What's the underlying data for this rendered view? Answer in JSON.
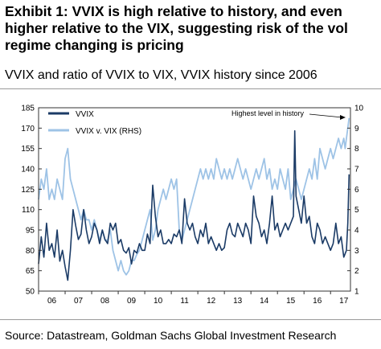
{
  "title": "Exhibit 1: VVIX is high relative to history, and even higher relative to the VIX, suggesting risk of the vol regime changing is pricing",
  "subtitle": "VVIX and ratio of VVIX to VIX, VVIX history since 2006",
  "source": "Source: Datastream, Goldman Sachs Global Investment Research",
  "colors": {
    "vvix": "#1b3b66",
    "ratio": "#9ec3e6",
    "axis": "#333333"
  },
  "chart_data": {
    "type": "line",
    "xlim": [
      2006,
      2017.75
    ],
    "x_tick_labels": [
      "06",
      "07",
      "08",
      "09",
      "10",
      "11",
      "12",
      "13",
      "14",
      "15",
      "16",
      "17"
    ],
    "y_left": {
      "lim": [
        50,
        185
      ],
      "ticks": [
        50,
        65,
        80,
        95,
        110,
        125,
        140,
        155,
        170,
        185
      ]
    },
    "y_right": {
      "lim": [
        1,
        10
      ],
      "ticks": [
        1,
        2,
        3,
        4,
        5,
        6,
        7,
        8,
        9,
        10
      ]
    },
    "annotation": "Highest level in history",
    "legend": {
      "placement": "top-left",
      "entries": [
        "VVIX",
        "VVIX v. VIX (RHS)"
      ]
    },
    "series": [
      {
        "name": "VVIX",
        "axis": "left",
        "x": [
          2006.0,
          2006.1,
          2006.2,
          2006.3,
          2006.4,
          2006.5,
          2006.6,
          2006.7,
          2006.8,
          2006.9,
          2007.0,
          2007.1,
          2007.2,
          2007.3,
          2007.4,
          2007.5,
          2007.6,
          2007.7,
          2007.8,
          2007.9,
          2008.0,
          2008.1,
          2008.2,
          2008.3,
          2008.4,
          2008.5,
          2008.6,
          2008.7,
          2008.8,
          2008.9,
          2009.0,
          2009.1,
          2009.2,
          2009.3,
          2009.4,
          2009.5,
          2009.6,
          2009.7,
          2009.8,
          2009.9,
          2010.0,
          2010.1,
          2010.2,
          2010.3,
          2010.4,
          2010.5,
          2010.6,
          2010.7,
          2010.8,
          2010.9,
          2011.0,
          2011.1,
          2011.2,
          2011.3,
          2011.4,
          2011.5,
          2011.6,
          2011.7,
          2011.8,
          2011.9,
          2012.0,
          2012.1,
          2012.2,
          2012.3,
          2012.4,
          2012.5,
          2012.6,
          2012.7,
          2012.8,
          2012.9,
          2013.0,
          2013.1,
          2013.2,
          2013.3,
          2013.4,
          2013.5,
          2013.6,
          2013.7,
          2013.8,
          2013.9,
          2014.0,
          2014.1,
          2014.2,
          2014.3,
          2014.4,
          2014.5,
          2014.6,
          2014.7,
          2014.8,
          2014.9,
          2015.0,
          2015.1,
          2015.2,
          2015.3,
          2015.4,
          2015.5,
          2015.6,
          2015.65,
          2015.7,
          2015.8,
          2015.9,
          2016.0,
          2016.1,
          2016.2,
          2016.3,
          2016.4,
          2016.5,
          2016.6,
          2016.7,
          2016.8,
          2016.9,
          2017.0,
          2017.1,
          2017.2,
          2017.3,
          2017.4,
          2017.5,
          2017.6,
          2017.65,
          2017.7
        ],
        "values": [
          70,
          90,
          75,
          100,
          80,
          85,
          75,
          95,
          72,
          80,
          68,
          58,
          80,
          110,
          98,
          88,
          92,
          110,
          95,
          85,
          90,
          100,
          95,
          85,
          95,
          88,
          85,
          100,
          95,
          100,
          85,
          88,
          80,
          78,
          82,
          70,
          80,
          78,
          85,
          80,
          80,
          92,
          85,
          128,
          105,
          90,
          95,
          85,
          85,
          88,
          85,
          92,
          90,
          95,
          85,
          118,
          100,
          95,
          100,
          90,
          85,
          95,
          90,
          100,
          85,
          90,
          85,
          80,
          85,
          80,
          82,
          95,
          100,
          92,
          90,
          100,
          95,
          90,
          100,
          95,
          85,
          120,
          105,
          100,
          90,
          95,
          85,
          100,
          120,
          95,
          100,
          90,
          95,
          100,
          95,
          100,
          105,
          168,
          120,
          110,
          100,
          120,
          100,
          105,
          90,
          85,
          100,
          95,
          85,
          90,
          85,
          80,
          85,
          100,
          85,
          90,
          75,
          80,
          100,
          136
        ]
      },
      {
        "name": "VVIX v. VIX (RHS)",
        "axis": "right",
        "x": [
          2006.0,
          2006.1,
          2006.2,
          2006.3,
          2006.4,
          2006.5,
          2006.6,
          2006.7,
          2006.8,
          2006.9,
          2007.0,
          2007.1,
          2007.2,
          2007.3,
          2007.4,
          2007.5,
          2007.6,
          2007.7,
          2007.8,
          2007.9,
          2008.0,
          2008.1,
          2008.2,
          2008.3,
          2008.4,
          2008.5,
          2008.6,
          2008.7,
          2008.8,
          2008.9,
          2009.0,
          2009.1,
          2009.2,
          2009.3,
          2009.4,
          2009.5,
          2009.6,
          2009.7,
          2009.8,
          2009.9,
          2010.0,
          2010.1,
          2010.2,
          2010.3,
          2010.4,
          2010.5,
          2010.6,
          2010.7,
          2010.8,
          2010.9,
          2011.0,
          2011.1,
          2011.2,
          2011.3,
          2011.4,
          2011.5,
          2011.6,
          2011.7,
          2011.8,
          2011.9,
          2012.0,
          2012.1,
          2012.2,
          2012.3,
          2012.4,
          2012.5,
          2012.6,
          2012.7,
          2012.8,
          2012.9,
          2013.0,
          2013.1,
          2013.2,
          2013.3,
          2013.4,
          2013.5,
          2013.6,
          2013.7,
          2013.8,
          2013.9,
          2014.0,
          2014.1,
          2014.2,
          2014.3,
          2014.4,
          2014.5,
          2014.6,
          2014.7,
          2014.8,
          2014.9,
          2015.0,
          2015.1,
          2015.2,
          2015.3,
          2015.4,
          2015.5,
          2015.6,
          2015.7,
          2015.8,
          2015.9,
          2016.0,
          2016.1,
          2016.2,
          2016.3,
          2016.4,
          2016.5,
          2016.6,
          2016.7,
          2016.8,
          2016.9,
          2017.0,
          2017.1,
          2017.2,
          2017.3,
          2017.4,
          2017.5,
          2017.55,
          2017.6,
          2017.65,
          2017.7
        ],
        "values": [
          5.5,
          6.5,
          6.0,
          7.0,
          5.5,
          6.0,
          5.5,
          6.5,
          6.0,
          5.5,
          7.5,
          8.0,
          6.5,
          6.0,
          5.5,
          5.0,
          4.5,
          5.0,
          4.5,
          4.5,
          4.0,
          4.5,
          4.0,
          3.5,
          4.0,
          3.5,
          3.5,
          4.0,
          3.0,
          2.5,
          2.0,
          2.5,
          2.0,
          1.8,
          2.0,
          2.5,
          2.5,
          2.8,
          3.0,
          3.5,
          4.0,
          4.5,
          5.0,
          3.5,
          4.0,
          5.0,
          5.5,
          6.0,
          5.5,
          6.0,
          6.5,
          6.0,
          6.5,
          4.0,
          3.5,
          4.0,
          4.5,
          5.0,
          5.5,
          6.0,
          6.5,
          7.0,
          6.5,
          7.0,
          6.5,
          7.0,
          6.5,
          7.5,
          7.0,
          6.5,
          7.0,
          6.5,
          7.0,
          6.5,
          7.0,
          7.5,
          7.0,
          6.5,
          7.0,
          6.5,
          6.0,
          6.5,
          7.0,
          6.5,
          7.0,
          7.5,
          6.5,
          7.0,
          6.0,
          6.5,
          6.0,
          7.0,
          6.5,
          6.0,
          7.0,
          5.5,
          6.0,
          6.5,
          6.0,
          5.5,
          6.0,
          6.5,
          7.0,
          6.5,
          7.5,
          6.5,
          8.0,
          7.5,
          7.0,
          7.5,
          8.0,
          7.5,
          8.0,
          8.5,
          8.0,
          8.5,
          8.0,
          8.5,
          9.0,
          9.5
        ]
      }
    ]
  }
}
